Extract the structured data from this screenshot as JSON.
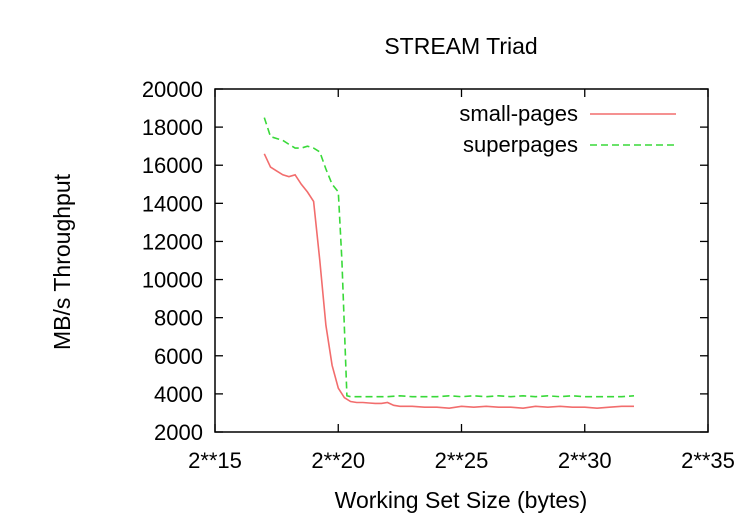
{
  "chart_data": {
    "type": "line",
    "title": "STREAM Triad",
    "xlabel": "Working Set Size (bytes)",
    "ylabel": "MB/s Throughput",
    "x_scale": "log2",
    "x_exponent_ticks": [
      15,
      20,
      25,
      30,
      35
    ],
    "x_tick_labels": [
      "2**15",
      "2**20",
      "2**25",
      "2**30",
      "2**35"
    ],
    "y_ticks": [
      2000,
      4000,
      6000,
      8000,
      10000,
      12000,
      14000,
      16000,
      18000,
      20000
    ],
    "y_tick_labels": [
      "2000",
      "4000",
      "6000",
      "8000",
      "10000",
      "12000",
      "14000",
      "16000",
      "18000",
      "20000"
    ],
    "xlim_exponent": [
      15,
      35
    ],
    "ylim": [
      2000,
      20000
    ],
    "grid": false,
    "legend_position": "top-right",
    "series": [
      {
        "name": "small-pages",
        "color": "#f26d6d",
        "dash": "solid",
        "x_exponent": [
          17,
          17.25,
          17.5,
          17.75,
          18,
          18.25,
          18.5,
          18.75,
          19,
          19.25,
          19.5,
          19.75,
          20,
          20.25,
          20.5,
          20.75,
          21,
          21.25,
          21.5,
          21.75,
          22,
          22.25,
          22.5,
          22.75,
          23,
          23.5,
          24,
          24.5,
          25,
          25.5,
          26,
          26.5,
          27,
          27.5,
          28,
          28.5,
          29,
          29.5,
          30,
          30.5,
          31,
          31.5,
          32
        ],
        "values": [
          16600,
          15900,
          15700,
          15500,
          15400,
          15500,
          15000,
          14600,
          14100,
          11000,
          7600,
          5500,
          4300,
          3800,
          3600,
          3550,
          3550,
          3520,
          3500,
          3500,
          3550,
          3400,
          3350,
          3350,
          3350,
          3300,
          3300,
          3250,
          3350,
          3300,
          3350,
          3300,
          3300,
          3250,
          3350,
          3300,
          3350,
          3300,
          3300,
          3250,
          3300,
          3350,
          3350
        ]
      },
      {
        "name": "superpages",
        "color": "#39d939",
        "dash": "dashed",
        "x_exponent": [
          17,
          17.25,
          17.5,
          17.75,
          18,
          18.25,
          18.5,
          18.75,
          19,
          19.25,
          19.5,
          19.75,
          20,
          20.15,
          20.35,
          20.5,
          20.75,
          21,
          21.5,
          22,
          22.5,
          23,
          23.5,
          24,
          24.5,
          25,
          25.5,
          26,
          26.5,
          27,
          27.5,
          28,
          28.5,
          29,
          29.5,
          30,
          30.5,
          31,
          31.5,
          32
        ],
        "values": [
          18500,
          17500,
          17400,
          17300,
          17100,
          16900,
          16900,
          17000,
          16900,
          16700,
          15800,
          15000,
          14600,
          11000,
          3900,
          3850,
          3850,
          3850,
          3850,
          3850,
          3900,
          3850,
          3850,
          3850,
          3900,
          3850,
          3900,
          3850,
          3900,
          3850,
          3900,
          3850,
          3900,
          3850,
          3900,
          3850,
          3850,
          3850,
          3850,
          3900
        ]
      }
    ]
  }
}
